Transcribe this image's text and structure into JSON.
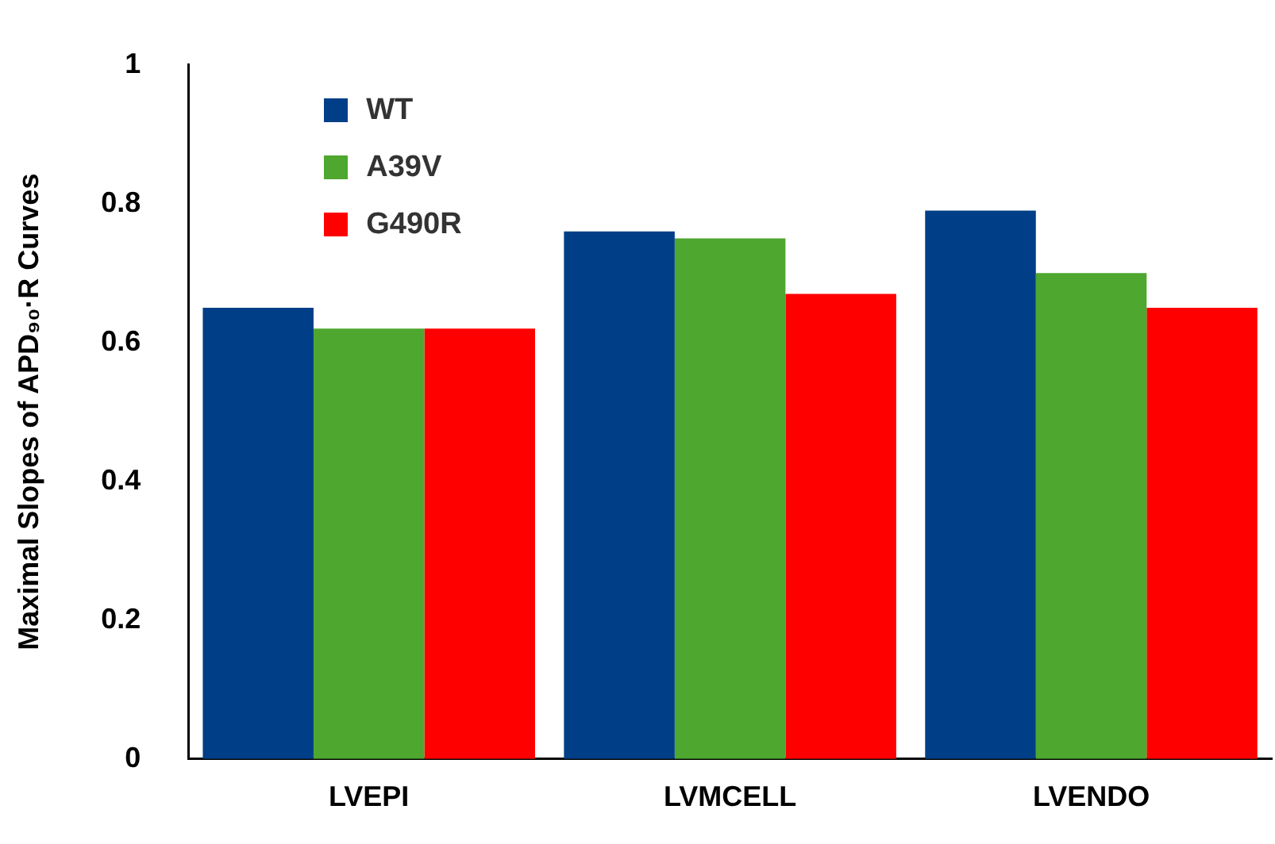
{
  "chart_data": {
    "type": "bar",
    "ylabel": "Maximal Slopes of APD₉₀·R Curves",
    "categories": [
      "LVEPI",
      "LVMCELL",
      "LVENDO"
    ],
    "series": [
      {
        "name": "WT",
        "color": "#003f87",
        "values": [
          0.65,
          0.76,
          0.79
        ]
      },
      {
        "name": "A39V",
        "color": "#4ea72e",
        "values": [
          0.62,
          0.75,
          0.7
        ]
      },
      {
        "name": "G490R",
        "color": "#ff0000",
        "values": [
          0.62,
          0.67,
          0.65
        ]
      }
    ],
    "ylim": [
      0,
      1
    ],
    "yticks": [
      0,
      0.2,
      0.4,
      0.6,
      0.8,
      1
    ],
    "grid": false,
    "legend": "top left"
  }
}
